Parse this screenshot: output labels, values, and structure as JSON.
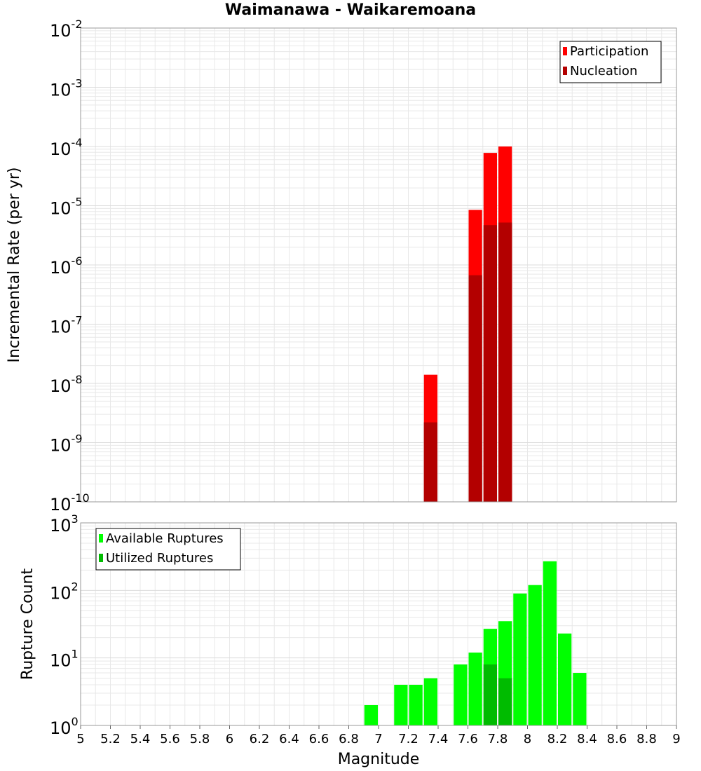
{
  "title": "Waimanawa - Waikaremoana",
  "xlabel": "Magnitude",
  "colors": {
    "participation": "#ff0000",
    "nucleation": "#b30000",
    "available": "#00ff00",
    "utilized": "#00bb00",
    "grid": "#e8e8e8"
  },
  "chart_data": [
    {
      "type": "bar",
      "scale": "log",
      "ylabel": "Incremental Rate (per yr)",
      "ylim_exp": [
        -10,
        -2
      ],
      "xlim": [
        5,
        9
      ],
      "bin_width": 0.1,
      "legend": [
        "Participation",
        "Nucleation"
      ],
      "legend_position": "top-right",
      "series": [
        {
          "name": "Participation",
          "x": [
            7.35,
            7.65,
            7.75,
            7.85
          ],
          "values": [
            1.4e-08,
            8.5e-06,
            7.8e-05,
            0.0001
          ]
        },
        {
          "name": "Nucleation",
          "x": [
            7.35,
            7.65,
            7.75,
            7.85
          ],
          "values": [
            2.2e-09,
            6.7e-07,
            4.7e-06,
            5.2e-06
          ]
        }
      ]
    },
    {
      "type": "bar",
      "scale": "log",
      "ylabel": "Rupture Count",
      "ylim_exp": [
        0,
        3
      ],
      "xlim": [
        5,
        9
      ],
      "bin_width": 0.1,
      "legend": [
        "Available Ruptures",
        "Utilized Ruptures"
      ],
      "legend_position": "top-left",
      "series": [
        {
          "name": "Available Ruptures",
          "x": [
            6.55,
            6.95,
            7.05,
            7.15,
            7.25,
            7.35,
            7.45,
            7.55,
            7.65,
            7.75,
            7.85,
            7.95,
            8.05,
            8.15,
            8.25,
            8.35
          ],
          "values": [
            1,
            2,
            1,
            4,
            4,
            5,
            1,
            8,
            12,
            27,
            35,
            90,
            120,
            270,
            23,
            6
          ]
        },
        {
          "name": "Utilized Ruptures",
          "x": [
            7.35,
            7.65,
            7.75,
            7.85
          ],
          "values": [
            1,
            1,
            8,
            5
          ]
        }
      ]
    }
  ],
  "x_ticks": [
    "5",
    "5.2",
    "5.4",
    "5.6",
    "5.8",
    "6",
    "6.2",
    "6.4",
    "6.6",
    "6.8",
    "7",
    "7.2",
    "7.4",
    "7.6",
    "7.8",
    "8",
    "8.2",
    "8.4",
    "8.6",
    "8.8",
    "9"
  ]
}
